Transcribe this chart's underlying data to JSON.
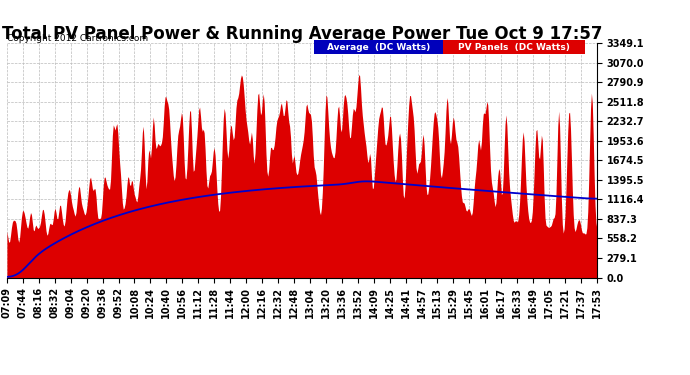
{
  "title": "Total PV Panel Power & Running Average Power Tue Oct 9 17:57",
  "copyright": "Copyright 2012 Cartronics.com",
  "ylabel_values": [
    0.0,
    279.1,
    558.2,
    837.3,
    1116.4,
    1395.5,
    1674.5,
    1953.6,
    2232.7,
    2511.8,
    2790.9,
    3070.0,
    3349.1
  ],
  "ymax": 3349.1,
  "ymin": 0.0,
  "legend_avg_color": "#0000bb",
  "legend_avg_label": "Average  (DC Watts)",
  "legend_pv_color": "#dd0000",
  "legend_pv_label": "PV Panels  (DC Watts)",
  "fill_color": "#dd0000",
  "line_color": "#0000cc",
  "background_color": "#ffffff",
  "grid_color": "#bbbbbb",
  "title_fontsize": 12,
  "tick_label_fontsize": 7,
  "x_tick_labels": [
    "07:09",
    "07:44",
    "08:16",
    "08:32",
    "09:04",
    "09:20",
    "09:36",
    "09:52",
    "10:08",
    "10:24",
    "10:40",
    "10:56",
    "11:12",
    "11:28",
    "11:44",
    "12:00",
    "12:16",
    "12:32",
    "12:48",
    "13:04",
    "13:20",
    "13:36",
    "13:52",
    "14:09",
    "14:25",
    "14:41",
    "14:57",
    "15:13",
    "15:29",
    "15:45",
    "16:01",
    "16:17",
    "16:33",
    "16:49",
    "17:05",
    "17:21",
    "17:37",
    "17:53"
  ]
}
